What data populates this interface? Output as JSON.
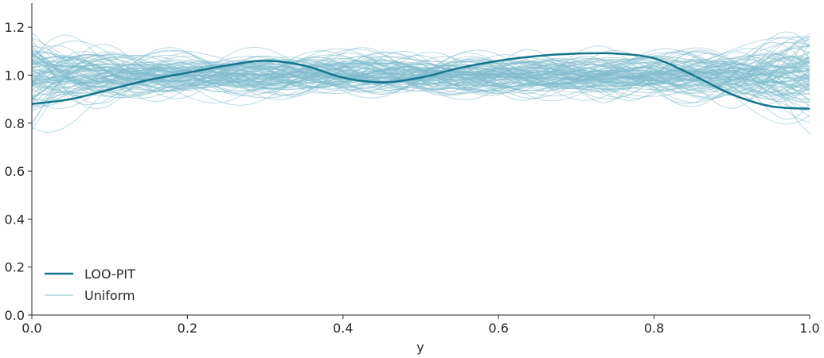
{
  "chart_data": {
    "type": "line",
    "title": "",
    "xlabel": "y",
    "ylabel": "",
    "xlim": [
      0.0,
      1.0
    ],
    "ylim": [
      0.0,
      1.3
    ],
    "xticks": [
      "0.0",
      "0.2",
      "0.4",
      "0.6",
      "0.8",
      "1.0"
    ],
    "yticks": [
      "0.0",
      "0.2",
      "0.4",
      "0.6",
      "0.8",
      "1.0",
      "1.2"
    ],
    "grid": false,
    "legend_position": "lower-left",
    "colors": {
      "loo_pit": "#14758c",
      "uniform": "#7fbcce"
    },
    "series": [
      {
        "name": "LOO-PIT",
        "x": [
          0.0,
          0.05,
          0.1,
          0.15,
          0.2,
          0.25,
          0.3,
          0.35,
          0.4,
          0.45,
          0.5,
          0.55,
          0.6,
          0.65,
          0.7,
          0.75,
          0.8,
          0.85,
          0.9,
          0.95,
          1.0
        ],
        "y": [
          0.88,
          0.9,
          0.94,
          0.98,
          1.01,
          1.04,
          1.06,
          1.04,
          0.99,
          0.97,
          0.99,
          1.03,
          1.06,
          1.08,
          1.09,
          1.09,
          1.07,
          1.0,
          0.92,
          0.87,
          0.86
        ]
      },
      {
        "name": "Uniform",
        "count": 100,
        "range": [
          0.75,
          1.28
        ]
      }
    ]
  }
}
